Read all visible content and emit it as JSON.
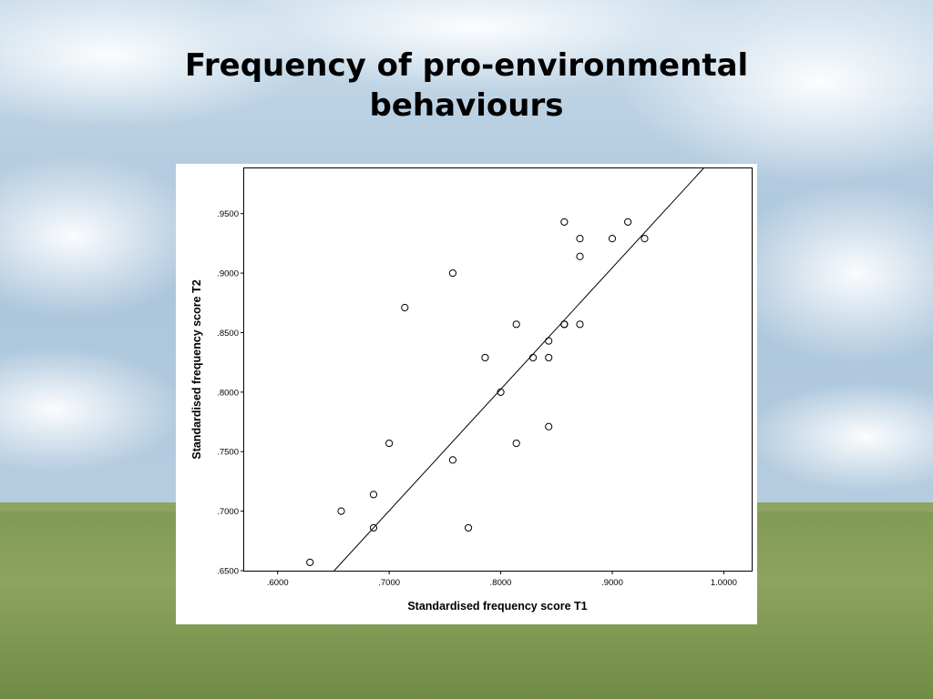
{
  "slide": {
    "title_line1": "Frequency of pro-environmental",
    "title_line2": "behaviours"
  },
  "chart_data": {
    "type": "scatter",
    "title": "Frequency of pro-environmental behaviours",
    "xlabel": "Standardised frequency score T1",
    "ylabel": "Standardised frequency score T2",
    "xlim": [
      0.57,
      1.025
    ],
    "ylim": [
      0.65,
      0.988
    ],
    "xticks": [
      0.6,
      0.7,
      0.8,
      0.9,
      1.0
    ],
    "xtick_labels": [
      ".6000",
      ".7000",
      ".8000",
      ".9000",
      "1.0000"
    ],
    "yticks": [
      0.65,
      0.7,
      0.75,
      0.8,
      0.85,
      0.9,
      0.95
    ],
    "ytick_labels": [
      ".6500",
      ".7000",
      ".7500",
      ".8000",
      ".8500",
      ".9000",
      ".9500"
    ],
    "marker": "open-circle",
    "grid": false,
    "fit_line": {
      "x": [
        0.6507,
        0.9818
      ],
      "y": [
        0.65,
        0.988
      ]
    },
    "points": [
      {
        "x": 0.629,
        "y": 0.657
      },
      {
        "x": 0.657,
        "y": 0.7
      },
      {
        "x": 0.686,
        "y": 0.686
      },
      {
        "x": 0.686,
        "y": 0.714
      },
      {
        "x": 0.7,
        "y": 0.757
      },
      {
        "x": 0.714,
        "y": 0.871
      },
      {
        "x": 0.757,
        "y": 0.743
      },
      {
        "x": 0.757,
        "y": 0.9
      },
      {
        "x": 0.771,
        "y": 0.686
      },
      {
        "x": 0.786,
        "y": 0.829
      },
      {
        "x": 0.8,
        "y": 0.8
      },
      {
        "x": 0.814,
        "y": 0.757
      },
      {
        "x": 0.814,
        "y": 0.857
      },
      {
        "x": 0.829,
        "y": 0.829
      },
      {
        "x": 0.843,
        "y": 0.829
      },
      {
        "x": 0.843,
        "y": 0.843
      },
      {
        "x": 0.843,
        "y": 0.771
      },
      {
        "x": 0.857,
        "y": 0.857
      },
      {
        "x": 0.857,
        "y": 0.857
      },
      {
        "x": 0.857,
        "y": 0.943
      },
      {
        "x": 0.871,
        "y": 0.857
      },
      {
        "x": 0.871,
        "y": 0.914
      },
      {
        "x": 0.871,
        "y": 0.929
      },
      {
        "x": 0.9,
        "y": 0.929
      },
      {
        "x": 0.914,
        "y": 0.943
      },
      {
        "x": 0.929,
        "y": 0.929
      }
    ]
  }
}
